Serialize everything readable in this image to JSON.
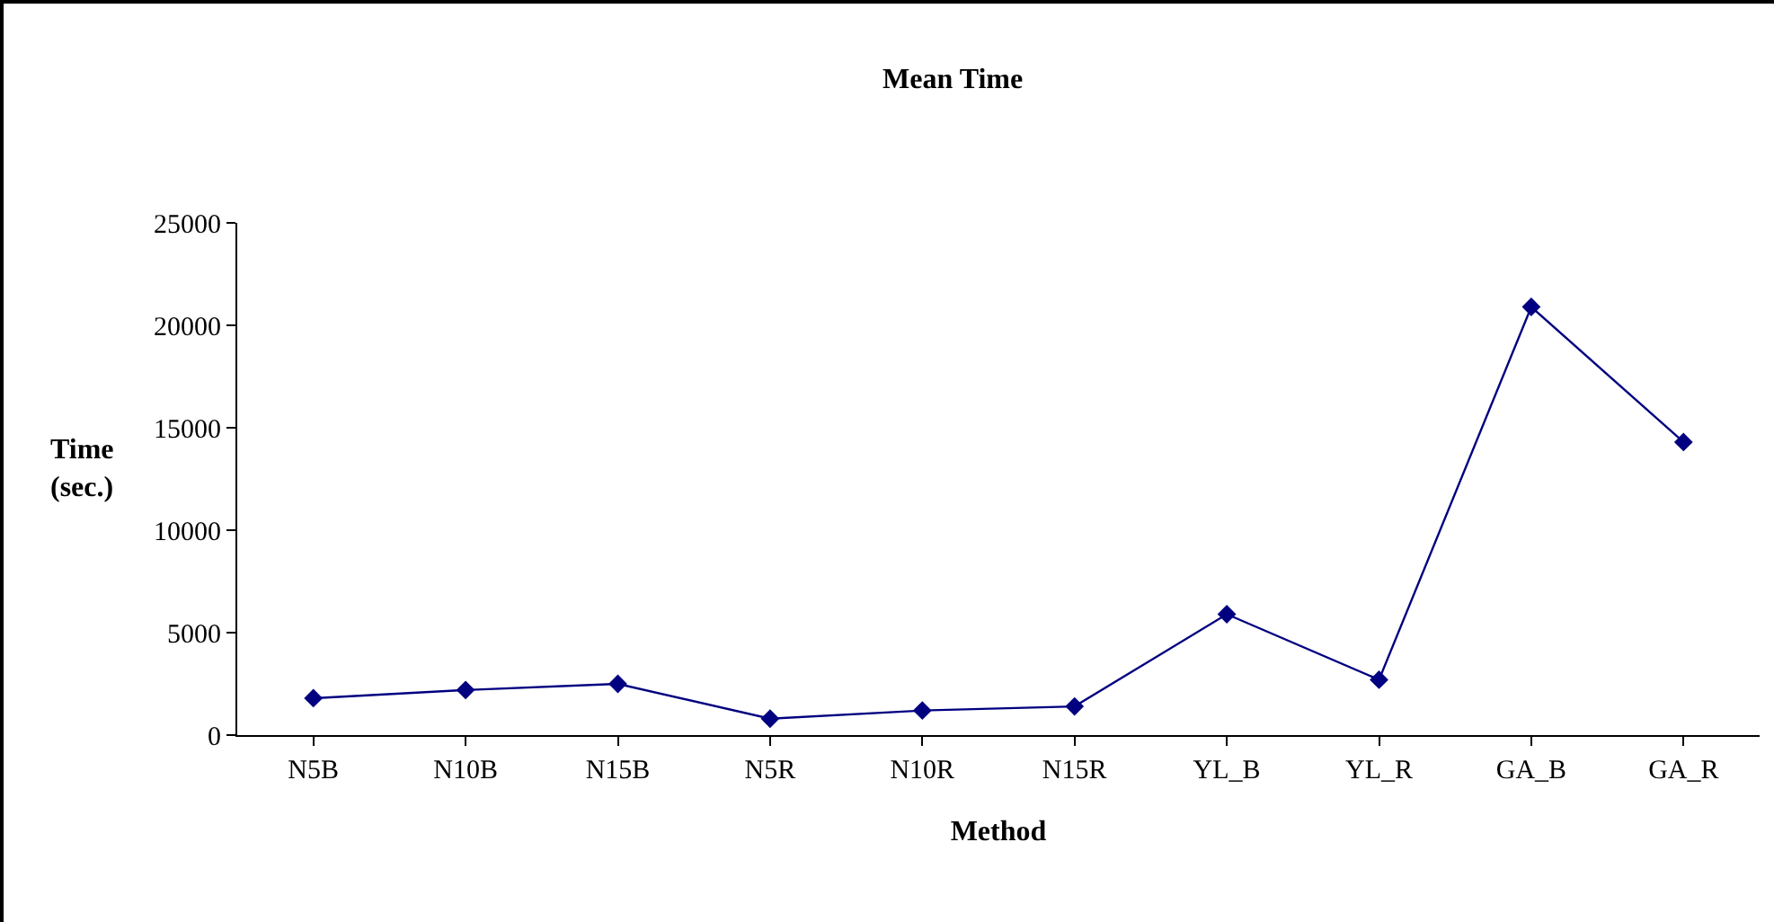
{
  "chart_data": {
    "type": "line",
    "title": "Mean Time",
    "xlabel": "Method",
    "ylabel": "Time\n(sec.)",
    "categories": [
      "N5B",
      "N10B",
      "N15B",
      "N5R",
      "N10R",
      "N15R",
      "YL_B",
      "YL_R",
      "GA_B",
      "GA_R"
    ],
    "series": [
      {
        "color": "#000080",
        "values": [
          1800,
          2200,
          2500,
          800,
          1200,
          1400,
          5900,
          2700,
          20900,
          14300
        ]
      }
    ],
    "ylim": [
      0,
      25000
    ],
    "yticks": [
      0,
      5000,
      10000,
      15000,
      20000,
      25000
    ],
    "grid": false,
    "marker": "diamond",
    "line_style": "solid"
  }
}
